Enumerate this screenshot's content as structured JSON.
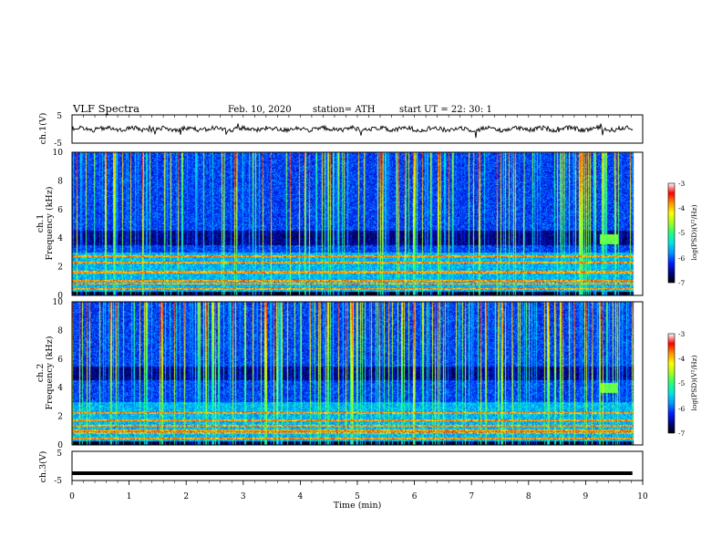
{
  "header": {
    "title": "VLF  Spectra",
    "date": "Feb. 10, 2020",
    "station": "station= ATH",
    "start": "start  UT  =    22: 30: 1"
  },
  "chart_data": {
    "type": "spectrogram",
    "xlabel": "Time  (min)",
    "xlim": [
      0,
      10
    ],
    "x_ticks": [
      "0",
      "1",
      "2",
      "3",
      "4",
      "5",
      "6",
      "7",
      "8",
      "9",
      "10"
    ],
    "data_end_min": 9.82,
    "panels": [
      {
        "name": "ch.1(V)",
        "kind": "waveform",
        "ylabel": "ch.1(V)",
        "ylim": [
          -5,
          5
        ],
        "y_ticks": [
          "5",
          "-5"
        ],
        "approx_level": 0,
        "color": "#000000"
      },
      {
        "name": "ch.1",
        "kind": "spectrogram",
        "ylabel_top": "ch.1",
        "ylabel": "Frequency (kHz)",
        "ylim": [
          0,
          10
        ],
        "y_ticks": [
          "0",
          "2",
          "4",
          "6",
          "8",
          "10"
        ],
        "colorbar": {
          "label": "log(PSD)(V²/Hz)",
          "range": [
            -7,
            -3
          ],
          "ticks": [
            "-3",
            "-4",
            "-5",
            "-6",
            "-7"
          ]
        },
        "features": {
          "strong_bands_khz": [
            0.4,
            0.8,
            1.0,
            1.6,
            2.3,
            2.7
          ],
          "quiet_band_khz": [
            3.5,
            4.5
          ],
          "sferic_density": "high",
          "burst": {
            "t_min": 9.4,
            "f_khz": 3.9
          }
        }
      },
      {
        "name": "ch.2",
        "kind": "spectrogram",
        "ylabel_top": "ch.2",
        "ylabel": "Frequency (kHz)",
        "ylim": [
          0,
          10
        ],
        "y_ticks": [
          "0",
          "2",
          "4",
          "6",
          "8",
          "10"
        ],
        "colorbar": {
          "label": "log(PSD)(V²/Hz)",
          "range": [
            -7,
            -3
          ],
          "ticks": [
            "-3",
            "-4",
            "-5",
            "-6",
            "-7"
          ]
        },
        "features": {
          "strong_bands_khz": [
            0.4,
            0.8,
            1.0,
            1.3,
            1.7,
            2.2
          ],
          "quiet_band_khz": [
            4.5,
            5.5
          ],
          "sferic_density": "high",
          "burst": {
            "t_min": 9.4,
            "f_khz": 4.0
          }
        }
      },
      {
        "name": "ch.3(V)",
        "kind": "waveform",
        "ylabel": "ch.3(V)",
        "ylim": [
          -5,
          5
        ],
        "y_ticks": [
          "5",
          "-5"
        ],
        "approx_level": -2.5,
        "color": "#000000"
      }
    ]
  },
  "colors": {
    "colormap": [
      "#000000",
      "#00008a",
      "#0020ff",
      "#0096ff",
      "#00e6e6",
      "#23ff7d",
      "#a0ff1e",
      "#ffff00",
      "#ff9600",
      "#ff0000",
      "#ffffff"
    ],
    "axis": "#000000",
    "background": "#ffffff"
  }
}
